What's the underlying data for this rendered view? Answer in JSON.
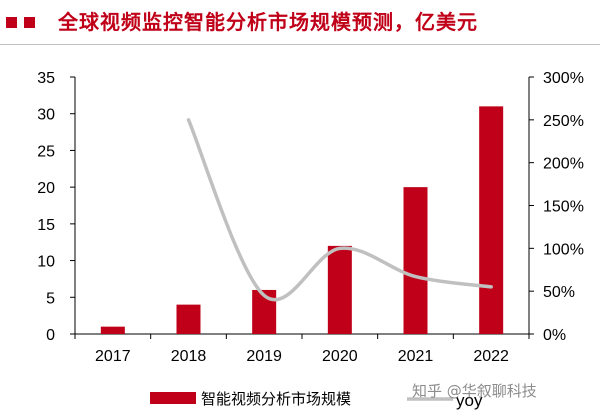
{
  "header": {
    "title": "全球视频监控智能分析市场规模预测，亿美元",
    "marker_color": "#c00018",
    "title_color": "#c00018"
  },
  "chart_data": {
    "type": "bar",
    "title": "全球视频监控智能分析市场规模预测，亿美元",
    "categories": [
      "2017",
      "2018",
      "2019",
      "2020",
      "2021",
      "2022"
    ],
    "series": [
      {
        "name": "智能视频分析市场规模",
        "type": "bar",
        "axis": "left",
        "color": "#c00018",
        "values": [
          1,
          4,
          6,
          12,
          20,
          31
        ]
      },
      {
        "name": "yoy",
        "type": "line",
        "axis": "right",
        "color": "#c0c0c0",
        "values": [
          null,
          2.5,
          0.45,
          1.0,
          0.67,
          0.55
        ]
      }
    ],
    "ylim_left": [
      0,
      35
    ],
    "yticks_left": [
      "0",
      "5",
      "10",
      "15",
      "20",
      "25",
      "30",
      "35"
    ],
    "ylim_right": [
      0,
      3.0
    ],
    "yticks_right": [
      "0%",
      "50%",
      "100%",
      "150%",
      "200%",
      "250%",
      "300%"
    ],
    "legend_position": "bottom"
  },
  "watermark": "知乎 @华叙聊科技"
}
